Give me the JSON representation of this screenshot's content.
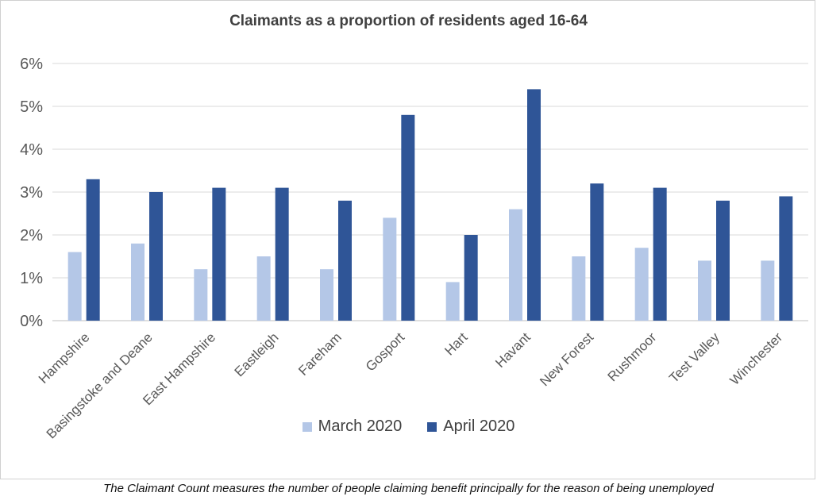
{
  "chart_data": {
    "type": "bar",
    "title": "Claimants as a proportion of residents aged 16-64",
    "categories": [
      "Hampshire",
      "Basingstoke and Deane",
      "East Hampshire",
      "Eastleigh",
      "Fareham",
      "Gosport",
      "Hart",
      "Havant",
      "New Forest",
      "Rushmoor",
      "Test Valley",
      "Winchester"
    ],
    "series": [
      {
        "name": "March 2020",
        "color": "#b4c7e7",
        "values": [
          1.6,
          1.8,
          1.2,
          1.5,
          1.2,
          2.4,
          0.9,
          2.6,
          1.5,
          1.7,
          1.4,
          1.4
        ]
      },
      {
        "name": "April 2020",
        "color": "#2f5597",
        "values": [
          3.3,
          3.0,
          3.1,
          3.1,
          2.8,
          4.8,
          2.0,
          5.4,
          3.2,
          3.1,
          2.8,
          2.9
        ]
      }
    ],
    "yticks": [
      "0%",
      "1%",
      "2%",
      "3%",
      "4%",
      "5%",
      "6%"
    ],
    "ylim": [
      0,
      6
    ],
    "xlabel": "",
    "ylabel": "",
    "grid": true,
    "legend_position": "bottom"
  },
  "footnote": "The Claimant Count measures the number of people claiming benefit principally for the reason of being unemployed"
}
